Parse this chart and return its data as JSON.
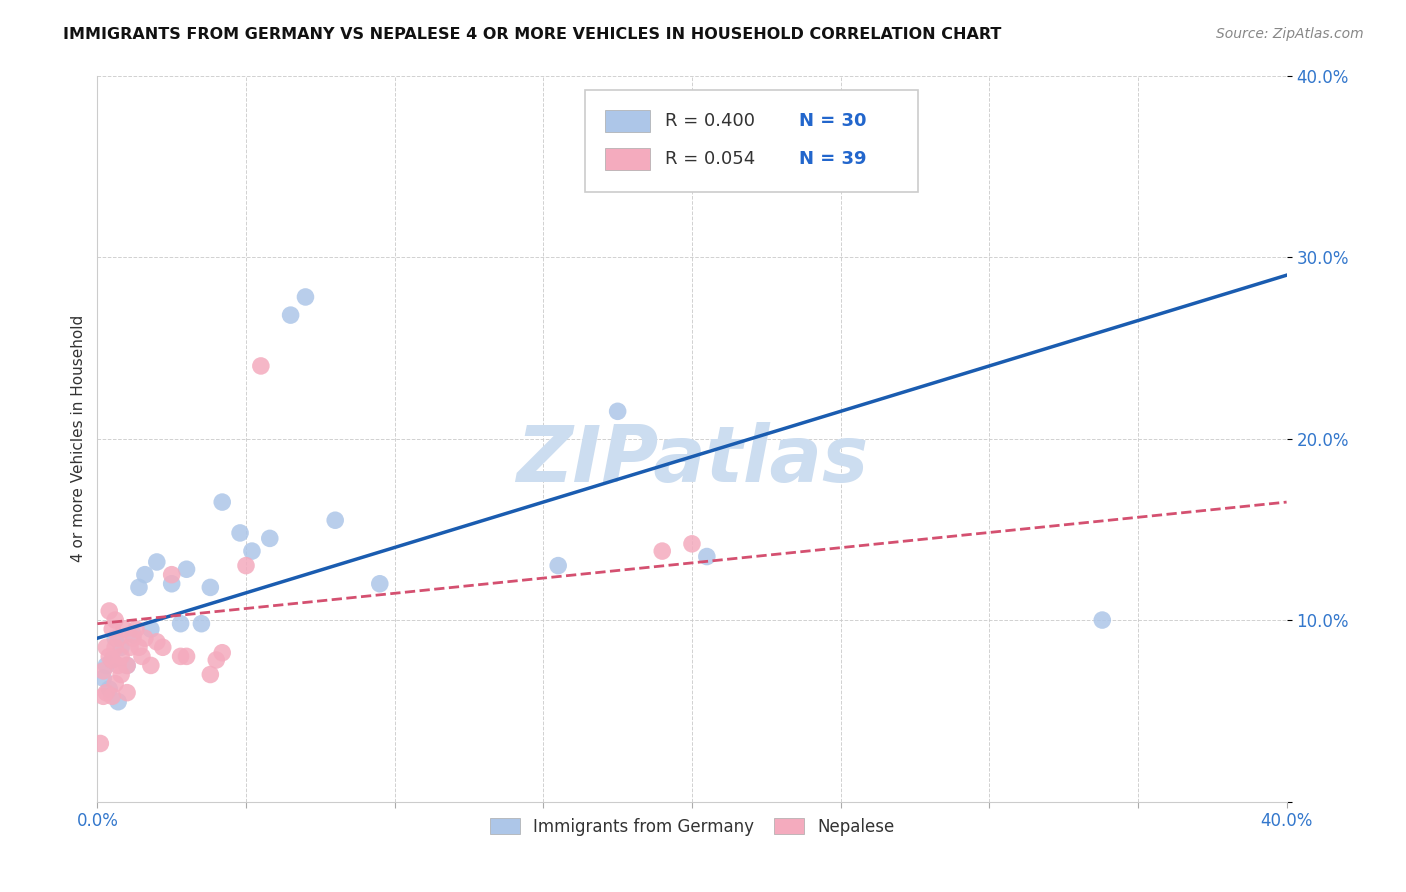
{
  "title": "IMMIGRANTS FROM GERMANY VS NEPALESE 4 OR MORE VEHICLES IN HOUSEHOLD CORRELATION CHART",
  "source": "Source: ZipAtlas.com",
  "ylabel": "4 or more Vehicles in Household",
  "xlim": [
    0.0,
    0.4
  ],
  "ylim": [
    0.0,
    0.4
  ],
  "xtick_vals": [
    0.0,
    0.05,
    0.1,
    0.15,
    0.2,
    0.25,
    0.3,
    0.35,
    0.4
  ],
  "xtick_labels": [
    "0.0%",
    "",
    "",
    "",
    "",
    "",
    "",
    "",
    "40.0%"
  ],
  "ytick_vals": [
    0.0,
    0.1,
    0.2,
    0.3,
    0.4
  ],
  "ytick_labels": [
    "",
    "10.0%",
    "20.0%",
    "30.0%",
    "40.0%"
  ],
  "legend_labels": [
    "Immigrants from Germany",
    "Nepalese"
  ],
  "blue_R": "R = 0.400",
  "blue_N": "N = 30",
  "pink_R": "R = 0.054",
  "pink_N": "N = 39",
  "blue_color": "#adc6e8",
  "pink_color": "#f4abbe",
  "blue_line_color": "#1a5cb0",
  "pink_line_color": "#d45070",
  "watermark": "ZIPatlas",
  "watermark_color": "#ccddf0",
  "blue_scatter_x": [
    0.002,
    0.003,
    0.004,
    0.005,
    0.006,
    0.007,
    0.008,
    0.01,
    0.012,
    0.014,
    0.016,
    0.018,
    0.02,
    0.025,
    0.028,
    0.03,
    0.035,
    0.038,
    0.042,
    0.048,
    0.052,
    0.058,
    0.065,
    0.07,
    0.08,
    0.095,
    0.155,
    0.175,
    0.205,
    0.338
  ],
  "blue_scatter_y": [
    0.068,
    0.075,
    0.062,
    0.078,
    0.09,
    0.055,
    0.085,
    0.075,
    0.092,
    0.118,
    0.125,
    0.095,
    0.132,
    0.12,
    0.098,
    0.128,
    0.098,
    0.118,
    0.165,
    0.148,
    0.138,
    0.145,
    0.268,
    0.278,
    0.155,
    0.12,
    0.13,
    0.215,
    0.135,
    0.1
  ],
  "pink_scatter_x": [
    0.001,
    0.002,
    0.002,
    0.003,
    0.003,
    0.004,
    0.004,
    0.005,
    0.005,
    0.005,
    0.006,
    0.006,
    0.006,
    0.007,
    0.007,
    0.008,
    0.008,
    0.009,
    0.01,
    0.01,
    0.011,
    0.012,
    0.013,
    0.014,
    0.015,
    0.016,
    0.018,
    0.02,
    0.022,
    0.025,
    0.028,
    0.03,
    0.038,
    0.04,
    0.042,
    0.05,
    0.055,
    0.19,
    0.2
  ],
  "pink_scatter_y": [
    0.032,
    0.058,
    0.072,
    0.06,
    0.085,
    0.08,
    0.105,
    0.058,
    0.078,
    0.095,
    0.065,
    0.085,
    0.1,
    0.075,
    0.09,
    0.07,
    0.08,
    0.095,
    0.06,
    0.075,
    0.085,
    0.09,
    0.095,
    0.085,
    0.08,
    0.09,
    0.075,
    0.088,
    0.085,
    0.125,
    0.08,
    0.08,
    0.07,
    0.078,
    0.082,
    0.13,
    0.24,
    0.138,
    0.142
  ],
  "blue_line_x": [
    0.0,
    0.4
  ],
  "blue_line_y": [
    0.09,
    0.29
  ],
  "pink_line_x": [
    0.0,
    0.4
  ],
  "pink_line_y": [
    0.098,
    0.165
  ],
  "figsize": [
    14.06,
    8.92
  ],
  "dpi": 100
}
